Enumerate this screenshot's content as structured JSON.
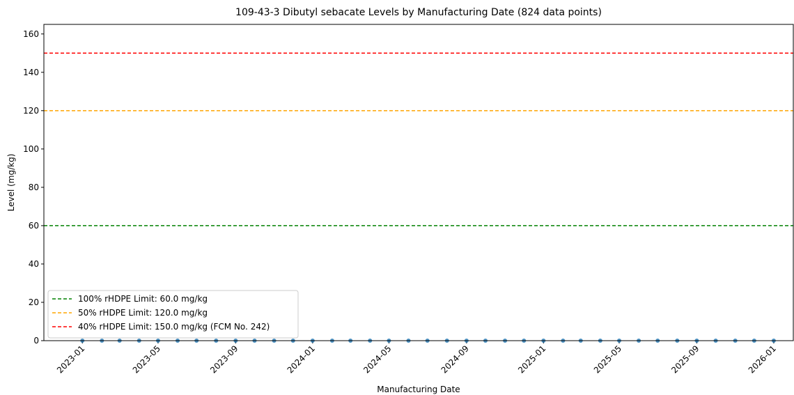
{
  "chart_data": {
    "type": "scatter",
    "title": "109-43-3 Dibutyl sebacate Levels by Manufacturing Date (824 data points)",
    "xlabel": "Manufacturing Date",
    "ylabel": "Level (mg/kg)",
    "series": [
      {
        "name": "Level",
        "color": "#1f77b4",
        "x": [
          "2023-01",
          "2023-02",
          "2023-03",
          "2023-04",
          "2023-05",
          "2023-06",
          "2023-07",
          "2023-08",
          "2023-09",
          "2023-10",
          "2023-11",
          "2023-12",
          "2024-01",
          "2024-02",
          "2024-03",
          "2024-04",
          "2024-05",
          "2024-06",
          "2024-07",
          "2024-08",
          "2024-09",
          "2024-10",
          "2024-11",
          "2024-12",
          "2025-01",
          "2025-02",
          "2025-03",
          "2025-04",
          "2025-05",
          "2025-06",
          "2025-07",
          "2025-08",
          "2025-09",
          "2025-10",
          "2025-11",
          "2025-12",
          "2026-01"
        ],
        "values": [
          0,
          0,
          0,
          0,
          0,
          0,
          0,
          0,
          0,
          0,
          0,
          0,
          0,
          0,
          0,
          0,
          0,
          0,
          0,
          0,
          0,
          0,
          0,
          0,
          0,
          0,
          0,
          0,
          0,
          0,
          0,
          0,
          0,
          0,
          0,
          0,
          0
        ]
      }
    ],
    "hlines": [
      {
        "value": 60,
        "label": "100% rHDPE Limit: 60.0 mg/kg",
        "color": "#008000"
      },
      {
        "value": 120,
        "label": "50% rHDPE Limit: 120.0 mg/kg",
        "color": "#ffa500"
      },
      {
        "value": 150,
        "label": "40% rHDPE Limit: 150.0 mg/kg (FCM No. 242)",
        "color": "#ff0000"
      }
    ],
    "xlim": [
      "2022-11",
      "2026-02"
    ],
    "xticks": [
      "2023-01",
      "2023-05",
      "2023-09",
      "2024-01",
      "2024-05",
      "2024-09",
      "2025-01",
      "2025-05",
      "2025-09",
      "2026-01"
    ],
    "ylim": [
      0,
      165
    ],
    "yticks": [
      0,
      20,
      40,
      60,
      80,
      100,
      120,
      140,
      160
    ],
    "legend": "lower left"
  }
}
